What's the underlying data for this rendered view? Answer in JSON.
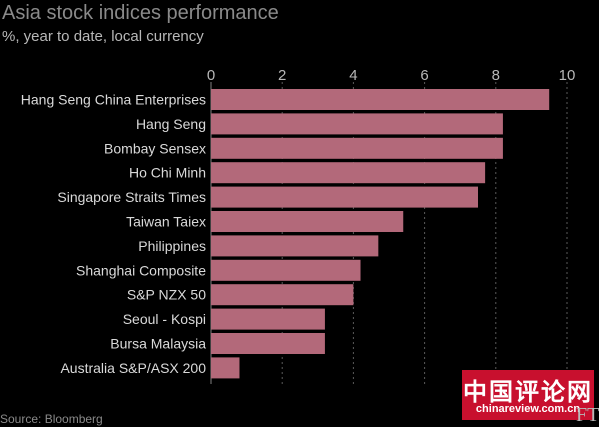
{
  "chart_data": {
    "type": "bar",
    "orientation": "horizontal",
    "title": "Asia stock indices performance",
    "subtitle": "%, year to date, local currency",
    "categories": [
      "Hang Seng China Enterprises",
      "Hang Seng",
      "Bombay Sensex",
      "Ho Chi Minh",
      "Singapore Straits Times",
      "Taiwan Taiex",
      "Philippines",
      "Shanghai Composite",
      "S&P NZX 50",
      "Seoul - Kospi",
      "Bursa Malaysia",
      "Australia S&P/ASX 200"
    ],
    "values": [
      9.5,
      8.2,
      8.2,
      7.7,
      7.5,
      5.4,
      4.7,
      4.2,
      4.0,
      3.2,
      3.2,
      0.8
    ],
    "xlim": [
      0,
      10
    ],
    "xticks": [
      "0",
      "2",
      "4",
      "6",
      "8",
      "10"
    ],
    "bar_color": "#b3697a",
    "grid": true,
    "source": "Source: Bloomberg"
  },
  "watermark": {
    "main": "中国评论网",
    "sub": "chinareview.com.cn"
  },
  "ft_logo": "FT"
}
